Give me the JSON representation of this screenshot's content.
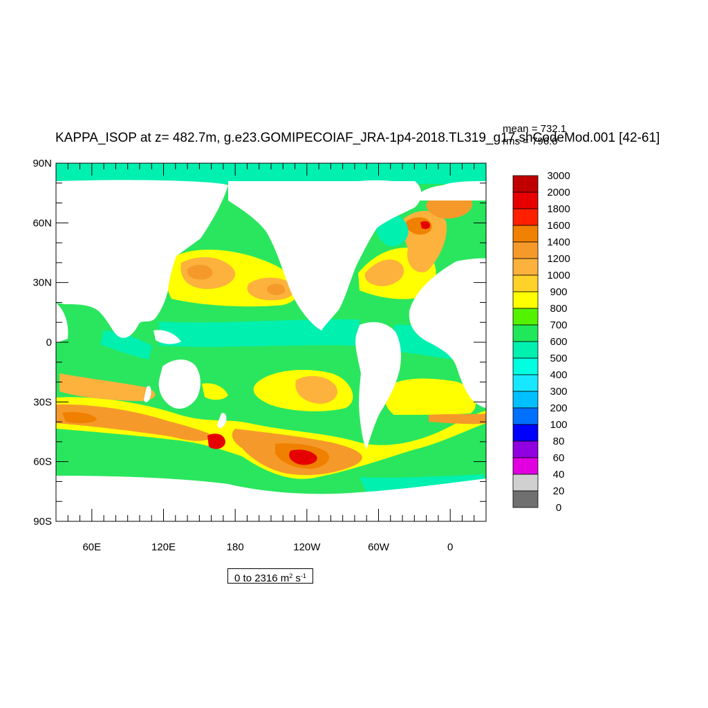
{
  "title": "KAPPA_ISOP at z= 482.7m, g.e23.GOMIPECOIAF_JRA-1p4-2018.TL319_g17.shCodeMod.001 [42-61]",
  "stats": {
    "mean": "mean = 732.1",
    "rms": "rms = 796.0"
  },
  "range_label": {
    "prefix": "0 to 2316 m",
    "exp1": "2",
    "middle": " s",
    "exp2": "-1"
  },
  "map": {
    "projection": "cylindrical-equidistant",
    "lon_range": [
      30,
      390
    ],
    "lat_range": [
      -90,
      90
    ],
    "y_ticks": [
      "90N",
      "60N",
      "30N",
      "0",
      "30S",
      "60S",
      "90S"
    ],
    "x_ticks": [
      "60E",
      "120E",
      "180",
      "120W",
      "60W",
      "0"
    ],
    "land_color": "#ffffff"
  },
  "colorbar": {
    "labels": [
      "3000",
      "2000",
      "1800",
      "1600",
      "1400",
      "1200",
      "1000",
      "900",
      "800",
      "700",
      "600",
      "500",
      "400",
      "300",
      "200",
      "100",
      "80",
      "60",
      "40",
      "20",
      "0"
    ],
    "colors": [
      "#c00000",
      "#e60000",
      "#ff2000",
      "#f08000",
      "#f59a2a",
      "#fcb23c",
      "#ffd22a",
      "#ffff00",
      "#55f200",
      "#20e85a",
      "#00f0b0",
      "#00ffe0",
      "#18e8ff",
      "#00c0ff",
      "#0070ff",
      "#0000ff",
      "#9000e0",
      "#e000e0",
      "#d0d0d0",
      "#707070"
    ]
  },
  "chart_data": {
    "type": "heatmap",
    "title": "KAPPA_ISOP at z= 482.7m, g.e23.GOMIPECOIAF_JRA-1p4-2018.TL319_g17.shCodeMod.001 [42-61]",
    "variable": "KAPPA_ISOP",
    "depth": "z= 482.7m",
    "units": "m^2 s^-1",
    "min": 0,
    "max": 2316,
    "mean": 732.1,
    "rms": 796.0,
    "xlim": [
      30,
      390
    ],
    "ylim": [
      -90,
      90
    ],
    "contour_levels": [
      0,
      20,
      40,
      60,
      80,
      100,
      200,
      300,
      400,
      500,
      600,
      700,
      800,
      900,
      1000,
      1200,
      1400,
      1600,
      1800,
      2000,
      3000
    ],
    "features": [
      {
        "region": "Southern Ocean south of Pacific (~55-62S, 150W-100W)",
        "value_band": "1600-2000"
      },
      {
        "region": "Antarctic Circumpolar Current, Indian sector (~40-50S)",
        "value_band": "1200-1400"
      },
      {
        "region": "South Atlantic / Drake Passage band (~50-60S)",
        "value_band": "1000-1400"
      },
      {
        "region": "Labrador Sea / subpolar North Atlantic",
        "value_band": "1200-2000"
      },
      {
        "region": "Kuroshio extension (~35N, 145E)",
        "value_band": "1000-1200"
      },
      {
        "region": "Gulf Stream (~35N, 70W)",
        "value_band": "1000-1200"
      },
      {
        "region": "South Pacific subtropical gyre (~25S, 130W)",
        "value_band": "900-1200"
      },
      {
        "region": "South Atlantic subtropical gyre (~30S, 15W)",
        "value_band": "800-900"
      },
      {
        "region": "Equatorial band (10S-10N)",
        "value_band": "500-700"
      },
      {
        "region": "Arctic Ocean",
        "value_band": "500-600"
      },
      {
        "region": "Open ocean elsewhere",
        "value_band": "600-700"
      }
    ]
  }
}
